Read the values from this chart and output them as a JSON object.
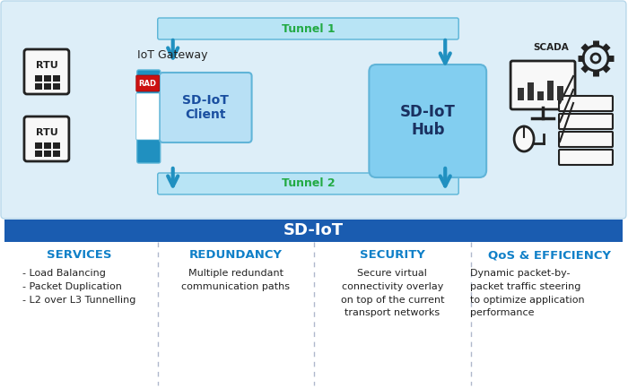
{
  "bg_top_color": "#ddeef8",
  "bg_top_border": "#b8d8ea",
  "tunnel_fill": "#b8e4f5",
  "tunnel_border": "#5ab4d6",
  "arrow_color": "#2090c0",
  "hub_fill": "#82cef0",
  "hub_border": "#60b4d8",
  "client_fill": "#b8e0f5",
  "client_border": "#60b4d8",
  "rad_red": "#cc1111",
  "green_text": "#22aa44",
  "blue_header_bar": "#1a5cb0",
  "header_text_color": "#ffffff",
  "cyan_title_color": "#1080c8",
  "divider_color": "#b0b8cc",
  "dark_text": "#222222",
  "scada_bg": "#ddeef8",
  "title_sdiot": "SD-IoT",
  "services_title": "SERVICES",
  "redundancy_title": "REDUNDANCY",
  "security_title": "SECURITY",
  "qos_title": "QoS & EFFICIENCY",
  "services_text": "- Load Balancing\n- Packet Duplication\n- L2 over L3 Tunnelling",
  "redundancy_text": "Multiple redundant\ncommunication paths",
  "security_text": "Secure virtual\nconnectivity overlay\non top of the current\ntransport networks",
  "qos_text": "Dynamic packet-by-\npacket traffic steering\nto optimize application\nperformance",
  "tunnel1_label": "Tunnel 1",
  "tunnel2_label": "Tunnel 2",
  "gateway_label": "IoT Gateway",
  "client_label": "SD-IoT\nClient",
  "hub_label": "SD-IoT\nHub"
}
